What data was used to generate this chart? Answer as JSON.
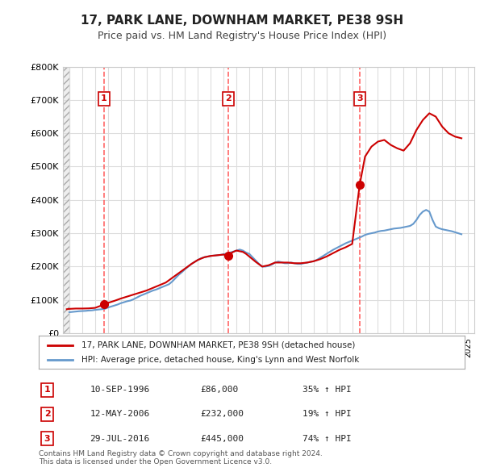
{
  "title": "17, PARK LANE, DOWNHAM MARKET, PE38 9SH",
  "subtitle": "Price paid vs. HM Land Registry's House Price Index (HPI)",
  "legend_label_red": "17, PARK LANE, DOWNHAM MARKET, PE38 9SH (detached house)",
  "legend_label_blue": "HPI: Average price, detached house, King's Lynn and West Norfolk",
  "footer": "Contains HM Land Registry data © Crown copyright and database right 2024.\nThis data is licensed under the Open Government Licence v3.0.",
  "sales": [
    {
      "num": 1,
      "date_label": "10-SEP-1996",
      "date_x": 1996.69,
      "price": 86000,
      "hpi_change": "35% ↑ HPI"
    },
    {
      "num": 2,
      "date_label": "12-MAY-2006",
      "date_x": 2006.36,
      "price": 232000,
      "hpi_change": "19% ↑ HPI"
    },
    {
      "num": 3,
      "date_label": "29-JUL-2016",
      "date_x": 2016.58,
      "price": 445000,
      "hpi_change": "74% ↑ HPI"
    }
  ],
  "sales_price_labels": [
    "£86,000",
    "£232,000",
    "£445,000"
  ],
  "ylim": [
    0,
    800000
  ],
  "yticks": [
    0,
    100000,
    200000,
    300000,
    400000,
    500000,
    600000,
    700000,
    800000
  ],
  "ytick_labels": [
    "£0",
    "£100K",
    "£200K",
    "£300K",
    "£400K",
    "£500K",
    "£600K",
    "£700K",
    "£800K"
  ],
  "xlim_start": 1993.5,
  "xlim_end": 2025.5,
  "hpi_color": "#6699cc",
  "price_color": "#cc0000",
  "marker_color": "#cc0000",
  "dashed_line_color": "#ff6666",
  "hatch_color": "#cccccc",
  "background_color": "#ffffff",
  "grid_color": "#dddddd",
  "hpi_data_x": [
    1994.0,
    1994.25,
    1994.5,
    1994.75,
    1995.0,
    1995.25,
    1995.5,
    1995.75,
    1996.0,
    1996.25,
    1996.5,
    1996.75,
    1997.0,
    1997.25,
    1997.5,
    1997.75,
    1998.0,
    1998.25,
    1998.5,
    1998.75,
    1999.0,
    1999.25,
    1999.5,
    1999.75,
    2000.0,
    2000.25,
    2000.5,
    2000.75,
    2001.0,
    2001.25,
    2001.5,
    2001.75,
    2002.0,
    2002.25,
    2002.5,
    2002.75,
    2003.0,
    2003.25,
    2003.5,
    2003.75,
    2004.0,
    2004.25,
    2004.5,
    2004.75,
    2005.0,
    2005.25,
    2005.5,
    2005.75,
    2006.0,
    2006.25,
    2006.5,
    2006.75,
    2007.0,
    2007.25,
    2007.5,
    2007.75,
    2008.0,
    2008.25,
    2008.5,
    2008.75,
    2009.0,
    2009.25,
    2009.5,
    2009.75,
    2010.0,
    2010.25,
    2010.5,
    2010.75,
    2011.0,
    2011.25,
    2011.5,
    2011.75,
    2012.0,
    2012.25,
    2012.5,
    2012.75,
    2013.0,
    2013.25,
    2013.5,
    2013.75,
    2014.0,
    2014.25,
    2014.5,
    2014.75,
    2015.0,
    2015.25,
    2015.5,
    2015.75,
    2016.0,
    2016.25,
    2016.5,
    2016.75,
    2017.0,
    2017.25,
    2017.5,
    2017.75,
    2018.0,
    2018.25,
    2018.5,
    2018.75,
    2019.0,
    2019.25,
    2019.5,
    2019.75,
    2020.0,
    2020.25,
    2020.5,
    2020.75,
    2021.0,
    2021.25,
    2021.5,
    2021.75,
    2022.0,
    2022.25,
    2022.5,
    2022.75,
    2023.0,
    2023.25,
    2023.5,
    2023.75,
    2024.0,
    2024.25,
    2024.5
  ],
  "hpi_data_y": [
    63000,
    64000,
    65000,
    66000,
    66500,
    67000,
    68000,
    68500,
    70000,
    71000,
    72000,
    73000,
    77000,
    80000,
    83000,
    86000,
    90000,
    93000,
    96000,
    98000,
    102000,
    107000,
    112000,
    116000,
    120000,
    124000,
    128000,
    131000,
    135000,
    139000,
    143000,
    147000,
    155000,
    165000,
    175000,
    183000,
    192000,
    200000,
    208000,
    214000,
    220000,
    225000,
    228000,
    230000,
    232000,
    233000,
    234000,
    235000,
    237000,
    239000,
    242000,
    245000,
    248000,
    251000,
    248000,
    242000,
    238000,
    228000,
    218000,
    208000,
    200000,
    200000,
    202000,
    206000,
    212000,
    215000,
    213000,
    210000,
    210000,
    212000,
    210000,
    208000,
    208000,
    210000,
    212000,
    214000,
    216000,
    220000,
    226000,
    232000,
    238000,
    244000,
    250000,
    255000,
    260000,
    265000,
    270000,
    274000,
    278000,
    282000,
    286000,
    290000,
    295000,
    298000,
    300000,
    302000,
    305000,
    307000,
    308000,
    310000,
    312000,
    314000,
    315000,
    316000,
    318000,
    320000,
    322000,
    328000,
    340000,
    355000,
    365000,
    370000,
    365000,
    340000,
    320000,
    315000,
    312000,
    310000,
    308000,
    306000,
    303000,
    300000,
    297000
  ],
  "price_data_x": [
    1993.8,
    1994.0,
    1994.5,
    1995.0,
    1995.5,
    1996.0,
    1996.69,
    1997.0,
    1997.5,
    1998.0,
    1998.5,
    1999.0,
    1999.5,
    2000.0,
    2000.5,
    2001.0,
    2001.5,
    2002.0,
    2002.5,
    2003.0,
    2003.5,
    2004.0,
    2004.5,
    2005.0,
    2005.5,
    2006.0,
    2006.36,
    2006.5,
    2006.75,
    2007.0,
    2007.5,
    2007.75,
    2008.0,
    2008.5,
    2009.0,
    2009.5,
    2010.0,
    2010.5,
    2011.0,
    2011.5,
    2012.0,
    2012.5,
    2013.0,
    2013.5,
    2014.0,
    2014.5,
    2015.0,
    2015.5,
    2016.0,
    2016.58,
    2017.0,
    2017.5,
    2018.0,
    2018.5,
    2019.0,
    2019.5,
    2020.0,
    2020.5,
    2021.0,
    2021.5,
    2022.0,
    2022.5,
    2023.0,
    2023.5,
    2024.0,
    2024.5
  ],
  "price_data_y": [
    72000,
    73000,
    74000,
    74000,
    74500,
    76000,
    86000,
    91000,
    97000,
    104000,
    110000,
    116000,
    122000,
    128000,
    136000,
    144000,
    152000,
    166000,
    180000,
    194000,
    208000,
    220000,
    228000,
    232000,
    234000,
    236000,
    232000,
    238000,
    244000,
    248000,
    244000,
    238000,
    230000,
    214000,
    200000,
    204000,
    212000,
    212000,
    212000,
    210000,
    210000,
    212000,
    216000,
    222000,
    230000,
    240000,
    250000,
    258000,
    268000,
    445000,
    530000,
    560000,
    575000,
    580000,
    565000,
    555000,
    548000,
    570000,
    610000,
    640000,
    660000,
    650000,
    620000,
    600000,
    590000,
    585000
  ]
}
